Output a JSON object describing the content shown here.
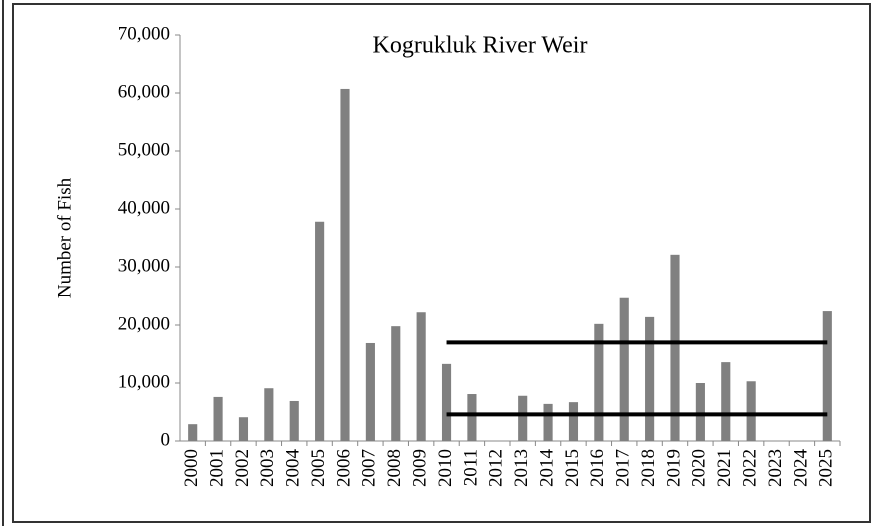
{
  "chart_data": {
    "type": "bar",
    "title": "Kogrukluk River Weir",
    "y_label": "Number of Fish",
    "categories": [
      "2000",
      "2001",
      "2002",
      "2003",
      "2004",
      "2005",
      "2006",
      "2007",
      "2008",
      "2009",
      "2010",
      "2011",
      "2012",
      "2013",
      "2014",
      "2015",
      "2016",
      "2017",
      "2018",
      "2019",
      "2020",
      "2021",
      "2022",
      "2023",
      "2024",
      "2025"
    ],
    "values": [
      2900,
      7600,
      4100,
      9100,
      6900,
      37800,
      60700,
      16900,
      19800,
      22200,
      13300,
      8100,
      null,
      7800,
      6400,
      6700,
      20200,
      24700,
      21400,
      32100,
      10000,
      13600,
      10300,
      null,
      null,
      22400
    ],
    "color": "#808080",
    "goal_range": {
      "lower": 4600,
      "upper": 17000,
      "start": "2010",
      "end": "2025",
      "color": "#000000"
    },
    "ylim": [
      0,
      70000
    ],
    "yticks": [
      0,
      {
        "value": 10000,
        "label": "10,000"
      },
      {
        "value": 20000,
        "label": "20,000"
      },
      {
        "value": 30000,
        "label": "30,000"
      },
      {
        "value": 40000,
        "label": "40,000"
      },
      {
        "value": 50000,
        "label": "50,000"
      },
      {
        "value": 60000,
        "label": "60,000"
      },
      {
        "value": 70000,
        "label": "70,000"
      }
    ],
    "grid": false
  }
}
